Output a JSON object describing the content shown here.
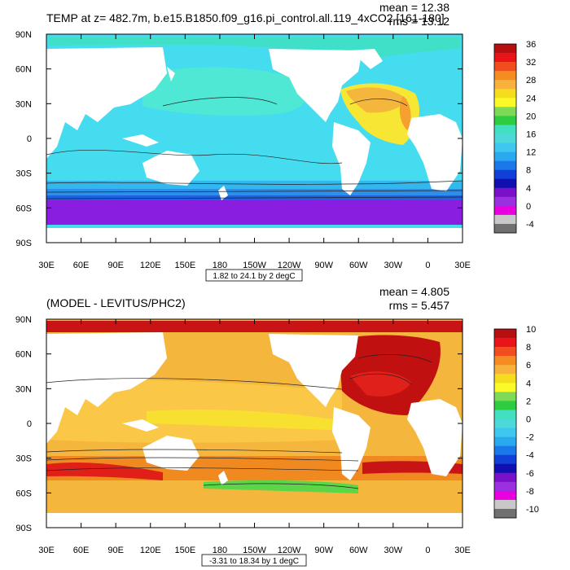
{
  "chart_data": [
    {
      "type": "heatmap",
      "title": "TEMP at z= 482.7m, b.e15.B1850.f09_g16.pi_control.all.119_4xCO2 [161-180]",
      "stats": {
        "mean": "mean = 12.38",
        "rms": "rms = 13.12"
      },
      "contour_info": "1.82 to 24.1 by 2 degC",
      "x_ticks": [
        "30E",
        "60E",
        "90E",
        "120E",
        "150E",
        "180",
        "150W",
        "120W",
        "90W",
        "60W",
        "30W",
        "0",
        "30E"
      ],
      "y_ticks": [
        "90N",
        "60N",
        "30N",
        "0",
        "30S",
        "60S",
        "90S"
      ],
      "lon_range": [
        30,
        390
      ],
      "lat_range": [
        -90,
        90
      ],
      "colorbar": {
        "labels": [
          "36",
          "32",
          "28",
          "24",
          "20",
          "16",
          "12",
          "8",
          "4",
          "0",
          "-4"
        ],
        "colors": [
          "#b50f0f",
          "#e8141a",
          "#f24d1e",
          "#f58c22",
          "#f7b13c",
          "#f5dc1e",
          "#fafa28",
          "#7ed957",
          "#2ecc40",
          "#40e0c0",
          "#4dd9d9",
          "#3ec8f0",
          "#2aa8f0",
          "#1a78e8",
          "#1040d8",
          "#1010b0",
          "#7a10c8",
          "#9a30e0",
          "#e800e0",
          "#c8c8c8",
          "#707070"
        ]
      },
      "fields": {
        "ocean_base": "#46dcf0",
        "north_pacific": "#4fe8d4",
        "north_atlantic_warm": "#f8e634",
        "north_atlantic_hot": "#f5b63e",
        "gulf_stream": "#f5a030",
        "southern_ocean_1": "#33b8ee",
        "southern_ocean_2": "#2a90ea",
        "southern_ocean_3": "#1e62e0",
        "antarctic": "#8a1ee0",
        "arctic": "#40e0c8"
      }
    },
    {
      "type": "heatmap",
      "title": "(MODEL - LEVITUS/PHC2)",
      "stats": {
        "mean": "mean = 4.805",
        "rms": "rms = 5.457"
      },
      "contour_info": "-3.31 to 18.34 by 1 degC",
      "x_ticks": [
        "30E",
        "60E",
        "90E",
        "120E",
        "150E",
        "180",
        "150W",
        "120W",
        "90W",
        "60W",
        "30W",
        "0",
        "30E"
      ],
      "y_ticks": [
        "90N",
        "60N",
        "30N",
        "0",
        "30S",
        "60S",
        "90S"
      ],
      "lon_range": [
        30,
        390
      ],
      "lat_range": [
        -90,
        90
      ],
      "colorbar": {
        "labels": [
          "10",
          "8",
          "6",
          "4",
          "2",
          "0",
          "-2",
          "-4",
          "-6",
          "-8",
          "-10"
        ],
        "colors": [
          "#b50f0f",
          "#e8141a",
          "#f24d1e",
          "#f58c22",
          "#f7b13c",
          "#f5dc1e",
          "#fafa28",
          "#7ed957",
          "#2ecc40",
          "#40e0c0",
          "#4dd9d9",
          "#3ec8f0",
          "#2aa8f0",
          "#1a78e8",
          "#1040d8",
          "#1010b0",
          "#7a10c8",
          "#9a30e0",
          "#e800e0",
          "#c8c8c8",
          "#707070"
        ]
      },
      "fields": {
        "ocean_base": "#f5b63e",
        "tropics": "#fac846",
        "equator": "#f8e030",
        "north_atlantic": "#c01010",
        "north_atlantic_core": "#e0201a",
        "arctic": "#c81414",
        "southern_band": "#f08a20",
        "southern_green": "#5cd648",
        "southern_red": "#e02018"
      }
    }
  ]
}
